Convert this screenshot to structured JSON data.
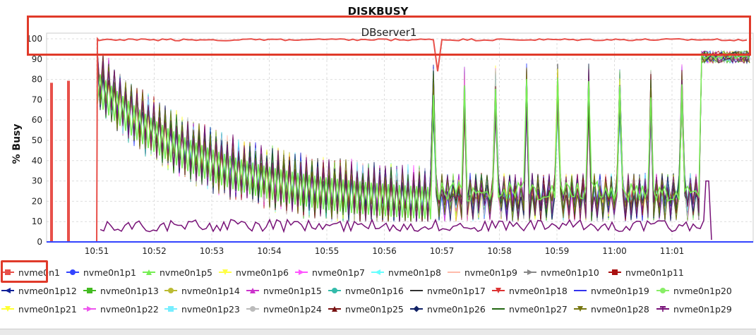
{
  "chart_data": {
    "type": "line",
    "title": "DISKBUSY",
    "subtitle": "DBserver1",
    "xlabel": "",
    "ylabel": "% Busy",
    "ylim": [
      0,
      100
    ],
    "yticks": [
      0,
      10,
      20,
      30,
      40,
      50,
      60,
      70,
      80,
      90,
      100
    ],
    "xticks": [
      "10:51",
      "10:52",
      "10:53",
      "10:54",
      "10:55",
      "10:56",
      "10:57",
      "10:58",
      "10:59",
      "11:00",
      "11:01"
    ],
    "grid": true,
    "legend_position": "bottom",
    "series": [
      {
        "name": "nvme0n1",
        "color": "#e8504a",
        "marker": "square",
        "description": "≈0 before 10:51 with spikes to 78-79; ~99-100 from 10:51 through 11:01; brief dip to ~84 near 10:56:30",
        "values": [
          0,
          78,
          79,
          0,
          100,
          100,
          99,
          100,
          100,
          100,
          100,
          100,
          99,
          100,
          100,
          84,
          100,
          100,
          100,
          100,
          100,
          100,
          100,
          100,
          100,
          100,
          100,
          100,
          100,
          100,
          100,
          100,
          100,
          100,
          100,
          100
        ]
      },
      {
        "name": "nvme0n1p1",
        "color": "#3344ff",
        "marker": "circle"
      },
      {
        "name": "nvme0n1p5",
        "color": "#77ee55",
        "marker": "triangle-up"
      },
      {
        "name": "nvme0n1p6",
        "color": "#ffff44",
        "marker": "triangle-down"
      },
      {
        "name": "nvme0n1p7",
        "color": "#ff55ff",
        "marker": "triangle-right"
      },
      {
        "name": "nvme0n1p8",
        "color": "#66ffff",
        "marker": "triangle-left"
      },
      {
        "name": "nvme0n1p9",
        "color": "#ffbbaa",
        "marker": "line"
      },
      {
        "name": "nvme0n1p10",
        "color": "#888888",
        "marker": "triangle-right"
      },
      {
        "name": "nvme0n1p11",
        "color": "#aa1111",
        "marker": "square"
      },
      {
        "name": "nvme0n1p12",
        "color": "#112299",
        "marker": "triangle-left"
      },
      {
        "name": "nvme0n1p13",
        "color": "#44bb22",
        "marker": "square"
      },
      {
        "name": "nvme0n1p14",
        "color": "#bbbb33",
        "marker": "circle"
      },
      {
        "name": "nvme0n1p15",
        "color": "#cc33cc",
        "marker": "triangle-up"
      },
      {
        "name": "nvme0n1p16",
        "color": "#33bbaa",
        "marker": "circle"
      },
      {
        "name": "nvme0n1p17",
        "color": "#333333",
        "marker": "line"
      },
      {
        "name": "nvme0n1p18",
        "color": "#dd3333",
        "marker": "triangle-down"
      },
      {
        "name": "nvme0n1p19",
        "color": "#3333ee",
        "marker": "line"
      },
      {
        "name": "nvme0n1p20",
        "color": "#88ee66",
        "marker": "circle"
      },
      {
        "name": "nvme0n1p21",
        "color": "#ffff33",
        "marker": "triangle-down"
      },
      {
        "name": "nvme0n1p22",
        "color": "#ee55ee",
        "marker": "triangle-right"
      },
      {
        "name": "nvme0n1p23",
        "color": "#77eeff",
        "marker": "square"
      },
      {
        "name": "nvme0n1p24",
        "color": "#bbbbbb",
        "marker": "circle"
      },
      {
        "name": "nvme0n1p25",
        "color": "#771111",
        "marker": "triangle-up"
      },
      {
        "name": "nvme0n1p26",
        "color": "#112266",
        "marker": "diamond"
      },
      {
        "name": "nvme0n1p27",
        "color": "#226611",
        "marker": "line"
      },
      {
        "name": "nvme0n1p28",
        "color": "#777711",
        "marker": "triangle-down"
      },
      {
        "name": "nvme0n1p29",
        "color": "#771177",
        "marker": "T",
        "description": "~8-12 % from 10:51 to 11:01, spike ~30 at 11:01"
      }
    ],
    "annotations": [
      "Red box highlighting top band 90-100% with DBserver1 subtitle",
      "Red box highlighting nvme0n1 legend entry"
    ],
    "pattern_notes": "Partition series start ~85 at 10:51, decay to ~20-40 with high-frequency oscillation; periodic spikes to 70-90 after 10:56:30; all partitions jump to ~90-95 after 11:01."
  },
  "legend_rows": [
    [
      "nvme0n1",
      "nvme0n1p1",
      "nvme0n1p5",
      "nvme0n1p6",
      "nvme0n1p7",
      "nvme0n1p8",
      "nvme0n1p9",
      "nvme0n1p10",
      "nvme0n1p11"
    ],
    [
      "nvme0n1p12",
      "nvme0n1p13",
      "nvme0n1p14",
      "nvme0n1p15",
      "nvme0n1p16",
      "nvme0n1p17",
      "nvme0n1p18",
      "nvme0n1p19",
      "nvme0n1p20"
    ],
    [
      "nvme0n1p21",
      "nvme0n1p22",
      "nvme0n1p23",
      "nvme0n1p24",
      "nvme0n1p25",
      "nvme0n1p26",
      "nvme0n1p27",
      "nvme0n1p28",
      "nvme0n1p29"
    ]
  ]
}
